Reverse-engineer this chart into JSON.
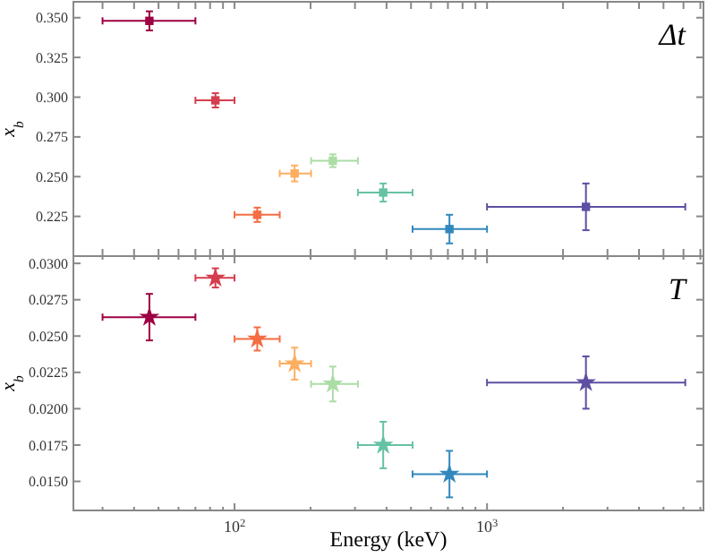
{
  "chart_data": [
    {
      "type": "scatter",
      "ylabel": "x$_{b}$",
      "annotations": [
        "Δt"
      ],
      "marker": "square",
      "tick_labels": "y",
      "log": "x",
      "x": [
        46,
        84,
        123,
        173,
        245,
        388,
        710,
        2465
      ],
      "xlim": [
        23,
        7200
      ],
      "xticks": [
        {
          "value": 30,
          "label": null
        },
        {
          "value": 40,
          "label": null
        },
        {
          "value": 50,
          "label": null
        },
        {
          "value": 60,
          "label": null
        },
        {
          "value": 70,
          "label": null
        },
        {
          "value": 80,
          "label": null
        },
        {
          "value": 90,
          "label": null
        },
        {
          "value": 100,
          "label": null
        },
        {
          "value": 200,
          "label": null
        },
        {
          "value": 300,
          "label": null
        },
        {
          "value": 400,
          "label": null
        },
        {
          "value": 500,
          "label": null
        },
        {
          "value": 600,
          "label": null
        },
        {
          "value": 700,
          "label": null
        },
        {
          "value": 800,
          "label": null
        },
        {
          "value": 900,
          "label": null
        },
        {
          "value": 1000,
          "label": null
        },
        {
          "value": 2000,
          "label": null
        },
        {
          "value": 3000,
          "label": null
        },
        {
          "value": 4000,
          "label": null
        },
        {
          "value": 5000,
          "label": null
        },
        {
          "value": 6000,
          "label": null
        },
        {
          "value": 7000,
          "label": null
        }
      ],
      "ylim": [
        0.2,
        0.36
      ],
      "yticks": [
        {
          "value": 0.225,
          "label": "0.225"
        },
        {
          "value": 0.25,
          "label": "0.250"
        },
        {
          "value": 0.275,
          "label": "0.275"
        },
        {
          "value": 0.3,
          "label": "0.300"
        },
        {
          "value": 0.325,
          "label": "0.325"
        },
        {
          "value": 0.35,
          "label": "0.350"
        }
      ],
      "values": [
        0.348,
        0.298,
        0.226,
        0.252,
        0.26,
        0.24,
        0.217,
        0.231
      ],
      "colors": [
        "#9e0142",
        "#d53e4f",
        "#f46d43",
        "#fdae61",
        "#abdda4",
        "#66c2a5",
        "#3288bd",
        "#5e4fa2"
      ],
      "errors": [
        0.006,
        0.0045,
        0.0045,
        0.005,
        0.004,
        0.0057,
        0.009,
        0.0147
      ],
      "xerrors": [
        [
          30,
          70
        ],
        [
          70,
          100
        ],
        [
          100,
          151
        ],
        [
          151,
          201
        ],
        [
          201,
          308
        ],
        [
          308,
          507
        ],
        [
          507,
          1000
        ],
        [
          1000,
          6100
        ]
      ]
    },
    {
      "type": "scatter",
      "ylabel": "x$_{b}$",
      "xlabel": "Energy (keV)",
      "annotations": [
        "T"
      ],
      "marker": "star",
      "log": "x",
      "x": [
        46,
        84,
        123,
        173,
        245,
        388,
        710,
        2465
      ],
      "xlim": [
        23,
        7200
      ],
      "xticks": [
        {
          "value": 30,
          "label": null
        },
        {
          "value": 40,
          "label": null
        },
        {
          "value": 50,
          "label": null
        },
        {
          "value": 60,
          "label": null
        },
        {
          "value": 70,
          "label": null
        },
        {
          "value": 80,
          "label": null
        },
        {
          "value": 90,
          "label": null
        },
        {
          "value": 100,
          "label": "10$^{2}$"
        },
        {
          "value": 200,
          "label": null
        },
        {
          "value": 300,
          "label": null
        },
        {
          "value": 400,
          "label": null
        },
        {
          "value": 500,
          "label": null
        },
        {
          "value": 600,
          "label": null
        },
        {
          "value": 700,
          "label": null
        },
        {
          "value": 800,
          "label": null
        },
        {
          "value": 900,
          "label": null
        },
        {
          "value": 1000,
          "label": "10$^{3}$"
        },
        {
          "value": 2000,
          "label": null
        },
        {
          "value": 3000,
          "label": null
        },
        {
          "value": 4000,
          "label": null
        },
        {
          "value": 5000,
          "label": null
        },
        {
          "value": 6000,
          "label": null
        },
        {
          "value": 7000,
          "label": null
        }
      ],
      "ylim": [
        0.013,
        0.0305
      ],
      "yticks": [
        {
          "value": 0.015,
          "label": "0.0150"
        },
        {
          "value": 0.0175,
          "label": "0.0175"
        },
        {
          "value": 0.02,
          "label": "0.0200"
        },
        {
          "value": 0.0225,
          "label": "0.0225"
        },
        {
          "value": 0.025,
          "label": "0.0250"
        },
        {
          "value": 0.0275,
          "label": "0.0275"
        },
        {
          "value": 0.03,
          "label": "0.0300"
        }
      ],
      "values": [
        0.0263,
        0.029,
        0.0248,
        0.0231,
        0.0217,
        0.0175,
        0.0155,
        0.0218
      ],
      "colors": [
        "#9e0142",
        "#d53e4f",
        "#f46d43",
        "#fdae61",
        "#abdda4",
        "#66c2a5",
        "#3288bd",
        "#5e4fa2"
      ],
      "errors": [
        0.0016,
        0.00066,
        0.0008,
        0.0011,
        0.0012,
        0.0016,
        0.0016,
        0.0018
      ],
      "xerrors": [
        [
          30,
          70
        ],
        [
          70,
          100
        ],
        [
          100,
          151
        ],
        [
          151,
          201
        ],
        [
          201,
          308
        ],
        [
          308,
          507
        ],
        [
          507,
          1000
        ],
        [
          1000,
          6100
        ]
      ]
    }
  ]
}
